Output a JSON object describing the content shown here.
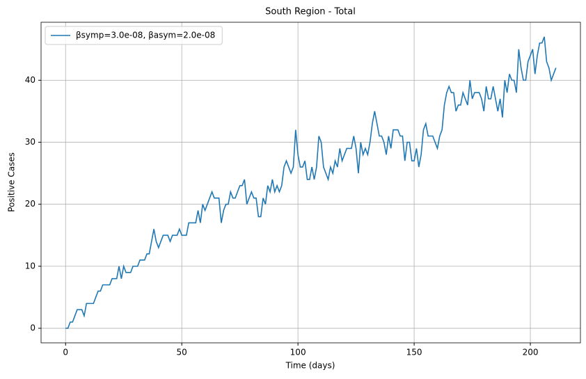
{
  "chart_data": {
    "type": "line",
    "title": "South Region - Total",
    "x_label": "Time (days)",
    "y_label": "Positive Cases",
    "x": [
      0,
      1,
      2,
      3,
      4,
      5,
      6,
      7,
      8,
      9,
      10,
      11,
      12,
      13,
      14,
      15,
      16,
      17,
      18,
      19,
      20,
      21,
      22,
      23,
      24,
      25,
      26,
      27,
      28,
      29,
      30,
      31,
      32,
      33,
      34,
      35,
      36,
      37,
      38,
      39,
      40,
      41,
      42,
      43,
      44,
      45,
      46,
      47,
      48,
      49,
      50,
      51,
      52,
      53,
      54,
      55,
      56,
      57,
      58,
      59,
      60,
      61,
      62,
      63,
      64,
      65,
      66,
      67,
      68,
      69,
      70,
      71,
      72,
      73,
      74,
      75,
      76,
      77,
      78,
      79,
      80,
      81,
      82,
      83,
      84,
      85,
      86,
      87,
      88,
      89,
      90,
      91,
      92,
      93,
      94,
      95,
      96,
      97,
      98,
      99,
      100,
      101,
      102,
      103,
      104,
      105,
      106,
      107,
      108,
      109,
      110,
      111,
      112,
      113,
      114,
      115,
      116,
      117,
      118,
      119,
      120,
      121,
      122,
      123,
      124,
      125,
      126,
      127,
      128,
      129,
      130,
      131,
      132,
      133,
      134,
      135,
      136,
      137,
      138,
      139,
      140,
      141,
      142,
      143,
      144,
      145,
      146,
      147,
      148,
      149,
      150,
      151,
      152,
      153,
      154,
      155,
      156,
      157,
      158,
      159,
      160,
      161,
      162,
      163,
      164,
      165,
      166,
      167,
      168,
      169,
      170,
      171,
      172,
      173,
      174,
      175,
      176,
      177,
      178,
      179,
      180,
      181,
      182,
      183,
      184,
      185,
      186,
      187,
      188,
      189,
      190,
      191,
      192,
      193,
      194,
      195,
      196,
      197,
      198,
      199,
      200,
      201,
      202,
      203,
      204,
      205,
      206,
      207,
      208,
      209,
      210,
      211
    ],
    "series": [
      {
        "name": "βsymp=3.0e-08, βasym=2.0e-08",
        "color": "#1f77b4",
        "values": [
          0,
          0,
          1,
          1,
          2,
          3,
          3,
          3,
          2,
          4,
          4,
          4,
          4,
          5,
          6,
          6,
          7,
          7,
          7,
          7,
          8,
          8,
          8,
          10,
          8,
          10,
          9,
          9,
          9,
          10,
          10,
          10,
          11,
          11,
          11,
          12,
          12,
          14,
          16,
          14,
          13,
          14,
          15,
          15,
          15,
          14,
          15,
          15,
          15,
          16,
          15,
          15,
          15,
          17,
          17,
          17,
          17,
          19,
          17,
          20,
          19,
          20,
          21,
          22,
          21,
          21,
          21,
          17,
          19,
          20,
          20,
          22,
          21,
          21,
          22,
          23,
          23,
          24,
          20,
          21,
          22,
          21,
          21,
          18,
          18,
          21,
          20,
          23,
          22,
          24,
          22,
          23,
          22,
          23,
          26,
          27,
          26,
          25,
          26,
          32,
          28,
          26,
          26,
          27,
          24,
          24,
          26,
          24,
          26,
          31,
          30,
          26,
          25,
          24,
          26,
          25,
          27,
          26,
          29,
          27,
          28,
          29,
          29,
          29,
          31,
          29,
          25,
          30,
          28,
          29,
          28,
          30,
          33,
          35,
          33,
          31,
          31,
          30,
          28,
          31,
          29,
          32,
          32,
          32,
          31,
          31,
          27,
          30,
          30,
          27,
          27,
          29,
          26,
          28,
          32,
          33,
          31,
          31,
          31,
          30,
          29,
          31,
          32,
          36,
          38,
          39,
          38,
          38,
          35,
          36,
          36,
          38,
          37,
          36,
          40,
          37,
          38,
          38,
          38,
          37,
          35,
          39,
          37,
          37,
          39,
          37,
          35,
          37,
          34,
          40,
          38,
          41,
          40,
          40,
          38,
          45,
          42,
          40,
          40,
          43,
          44,
          45,
          41,
          44,
          46,
          46,
          47,
          43,
          42,
          40,
          41,
          42
        ]
      }
    ],
    "xlim": [
      -10.55,
      221.55
    ],
    "ylim": [
      -2.35,
      49.35
    ],
    "xticks": [
      0,
      50,
      100,
      150,
      200
    ],
    "yticks": [
      0,
      10,
      20,
      30,
      40
    ],
    "grid": true,
    "legend": "upper-left"
  }
}
